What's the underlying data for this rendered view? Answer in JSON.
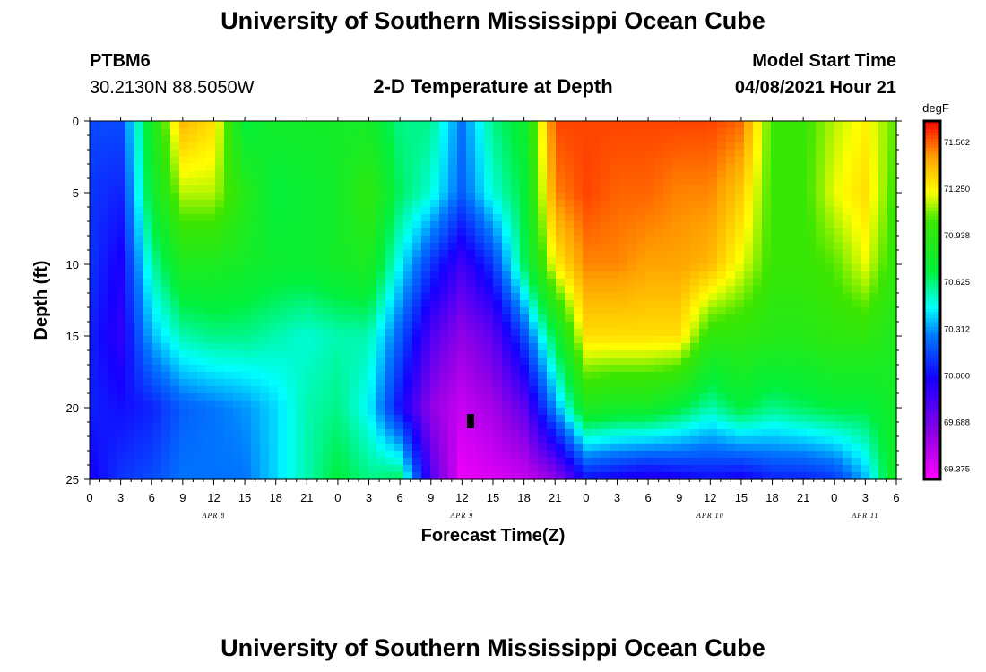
{
  "header": {
    "title": "University of Southern Mississippi Ocean Cube",
    "station_id": "PTBM6",
    "station_coords": "30.2130N  88.5050W",
    "chart_title": "2-D Temperature at Depth",
    "model_start_label": "Model Start Time",
    "model_start_value": "04/08/2021 Hour 21"
  },
  "footer": {
    "title": "University of Southern Mississippi Ocean Cube"
  },
  "chart_data": {
    "type": "heatmap",
    "title": "2-D Temperature at Depth",
    "xlabel": "Forecast Time(Z)",
    "ylabel": "Depth (ft)",
    "x_tick_labels": [
      "0",
      "3",
      "6",
      "9",
      "12",
      "15",
      "18",
      "21",
      "0",
      "3",
      "6",
      "9",
      "12",
      "15",
      "18",
      "21",
      "0",
      "3",
      "6",
      "9",
      "12",
      "15",
      "18",
      "21",
      "0",
      "3",
      "6"
    ],
    "date_labels": [
      {
        "label": "APR 8",
        "hour": 12
      },
      {
        "label": "APR 9",
        "hour": 36
      },
      {
        "label": "APR 10",
        "hour": 60
      },
      {
        "label": "APR 11",
        "hour": 75
      }
    ],
    "xlim_hours": [
      0,
      78
    ],
    "y_tick_labels": [
      "0",
      "5",
      "10",
      "15",
      "20",
      "25"
    ],
    "y_ticks": [
      0,
      5,
      10,
      15,
      20,
      25
    ],
    "ylim": [
      0,
      25
    ],
    "y_inverted": true,
    "colorbar": {
      "unit": "degF",
      "labels": [
        "71.562",
        "71.250",
        "70.938",
        "70.625",
        "70.312",
        "70.000",
        "69.688",
        "69.375"
      ],
      "values": [
        71.562,
        71.25,
        70.938,
        70.625,
        70.312,
        70.0,
        69.688,
        69.375
      ],
      "range": [
        69.3,
        71.7
      ]
    },
    "grid_depths": [
      0,
      5,
      10,
      15,
      20,
      25
    ],
    "grid_hours": [
      0,
      3,
      6,
      9,
      12,
      15,
      18,
      21,
      24,
      27,
      30,
      33,
      36,
      39,
      42,
      45,
      48,
      51,
      54,
      57,
      60,
      63,
      66,
      69,
      72,
      75,
      78
    ],
    "values": [
      [
        70.15,
        70.15,
        70.8,
        71.4,
        71.3,
        70.7,
        70.8,
        70.8,
        70.8,
        70.8,
        70.6,
        70.6,
        70.25,
        70.6,
        70.75,
        71.6,
        71.6,
        71.6,
        71.6,
        71.6,
        71.6,
        71.55,
        71.0,
        71.0,
        71.15,
        71.25,
        71.05
      ],
      [
        70.1,
        70.05,
        70.75,
        71.15,
        71.15,
        70.9,
        70.7,
        70.75,
        70.8,
        70.95,
        70.65,
        70.5,
        70.2,
        70.5,
        70.7,
        71.5,
        71.6,
        71.55,
        71.55,
        71.5,
        71.5,
        71.35,
        71.0,
        71.0,
        71.2,
        71.3,
        71.0
      ],
      [
        70.1,
        69.95,
        70.55,
        70.85,
        70.85,
        70.8,
        70.75,
        70.75,
        70.8,
        70.85,
        70.45,
        70.1,
        69.85,
        70.1,
        70.65,
        71.25,
        71.5,
        71.5,
        71.45,
        71.45,
        71.4,
        71.2,
        71.0,
        71.0,
        71.05,
        71.2,
        70.95
      ],
      [
        70.05,
        69.9,
        70.35,
        70.55,
        70.6,
        70.6,
        70.55,
        70.5,
        70.55,
        70.55,
        70.2,
        69.8,
        69.6,
        69.75,
        70.15,
        70.7,
        71.3,
        71.3,
        71.3,
        71.3,
        70.95,
        70.95,
        70.9,
        70.9,
        70.95,
        70.95,
        70.85
      ],
      [
        70.05,
        70.0,
        70.05,
        70.2,
        70.25,
        70.3,
        70.4,
        70.55,
        70.6,
        70.45,
        70.0,
        69.6,
        69.45,
        69.55,
        69.75,
        70.3,
        70.85,
        70.8,
        70.8,
        70.7,
        70.55,
        70.7,
        70.6,
        70.65,
        70.7,
        70.7,
        70.8
      ],
      [
        69.95,
        70.1,
        70.15,
        70.25,
        70.25,
        70.25,
        70.4,
        70.55,
        70.7,
        70.6,
        70.65,
        69.8,
        69.35,
        69.4,
        69.45,
        69.6,
        70.0,
        69.95,
        69.9,
        69.95,
        70.0,
        69.95,
        70.05,
        70.05,
        70.1,
        70.35,
        70.85
      ]
    ]
  }
}
